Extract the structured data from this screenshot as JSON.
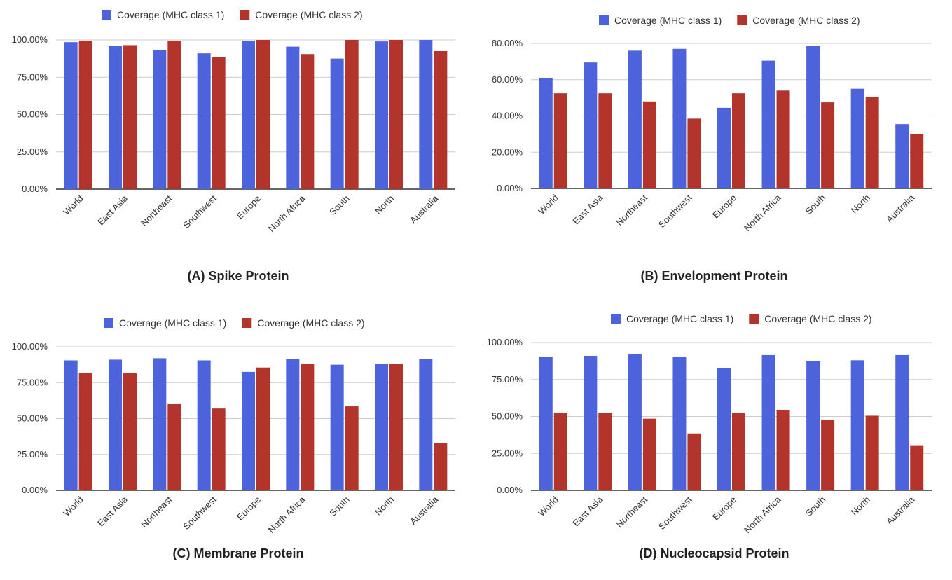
{
  "colors": {
    "class1": "#4c63dc",
    "class2": "#b3342a",
    "grid": "#cccccc",
    "axis": "#333333"
  },
  "chart_data": [
    {
      "type": "bar",
      "caption": "(A) Spike Protein",
      "categories": [
        "World",
        "East Asia",
        "Northeast",
        "Southwest",
        "Europe",
        "North Africa",
        "South",
        "North",
        "Australia"
      ],
      "series": [
        {
          "name": "Coverage (MHC class 1)",
          "values": [
            98.5,
            96.0,
            93.0,
            91.0,
            99.5,
            95.5,
            87.5,
            99.0,
            100.0
          ]
        },
        {
          "name": "Coverage (MHC class 2)",
          "values": [
            99.5,
            96.5,
            99.5,
            88.5,
            100.0,
            90.5,
            100.0,
            100.0,
            92.5
          ]
        }
      ],
      "yticks": [
        "0.00%",
        "25.00%",
        "50.00%",
        "75.00%",
        "100.00%"
      ],
      "ylim": [
        0,
        100
      ],
      "grid": true,
      "legend": "top-center"
    },
    {
      "type": "bar",
      "caption": "(B) Envelopment Protein",
      "categories": [
        "World",
        "East Asia",
        "Northeast",
        "Southwest",
        "Europe",
        "North Africa",
        "South",
        "North",
        "Australia"
      ],
      "series": [
        {
          "name": "Coverage (MHC class 1)",
          "values": [
            61.0,
            69.5,
            76.0,
            77.0,
            44.5,
            70.5,
            78.5,
            55.0,
            35.5
          ]
        },
        {
          "name": "Coverage (MHC class 2)",
          "values": [
            52.5,
            52.5,
            48.0,
            38.5,
            52.5,
            54.0,
            47.5,
            50.5,
            30.0
          ]
        }
      ],
      "yticks": [
        "0.00%",
        "20.00%",
        "40.00%",
        "60.00%",
        "80.00%"
      ],
      "ylim": [
        0,
        80
      ],
      "grid": true,
      "legend": "top-center"
    },
    {
      "type": "bar",
      "caption": "(C) Membrane Protein",
      "categories": [
        "World",
        "East Asia",
        "Northeast",
        "Southwest",
        "Europe",
        "North Africa",
        "South",
        "North",
        "Australia"
      ],
      "series": [
        {
          "name": "Coverage (MHC class 1)",
          "values": [
            90.5,
            91.0,
            92.0,
            90.5,
            82.5,
            91.5,
            87.5,
            88.0,
            91.5
          ]
        },
        {
          "name": "Coverage (MHC class 2)",
          "values": [
            81.5,
            81.5,
            60.0,
            57.0,
            85.5,
            88.0,
            58.5,
            88.0,
            33.0
          ]
        }
      ],
      "yticks": [
        "0.00%",
        "25.00%",
        "50.00%",
        "75.00%",
        "100.00%"
      ],
      "ylim": [
        0,
        100
      ],
      "grid": true,
      "legend": "top-center"
    },
    {
      "type": "bar",
      "caption": "(D) Nucleocapsid Protein",
      "categories": [
        "World",
        "East Asia",
        "Northeast",
        "Southwest",
        "Europe",
        "North Africa",
        "South",
        "North",
        "Australia"
      ],
      "series": [
        {
          "name": "Coverage (MHC class 1)",
          "values": [
            90.5,
            91.0,
            92.0,
            90.5,
            82.5,
            91.5,
            87.5,
            88.0,
            91.5
          ]
        },
        {
          "name": "Coverage (MHC class 2)",
          "values": [
            52.5,
            52.5,
            48.5,
            38.5,
            52.5,
            54.5,
            47.5,
            50.5,
            30.5
          ]
        }
      ],
      "yticks": [
        "0.00%",
        "25.00%",
        "50.00%",
        "75.00%",
        "100.00%"
      ],
      "ylim": [
        0,
        100
      ],
      "grid": true,
      "legend": "top-center"
    }
  ]
}
